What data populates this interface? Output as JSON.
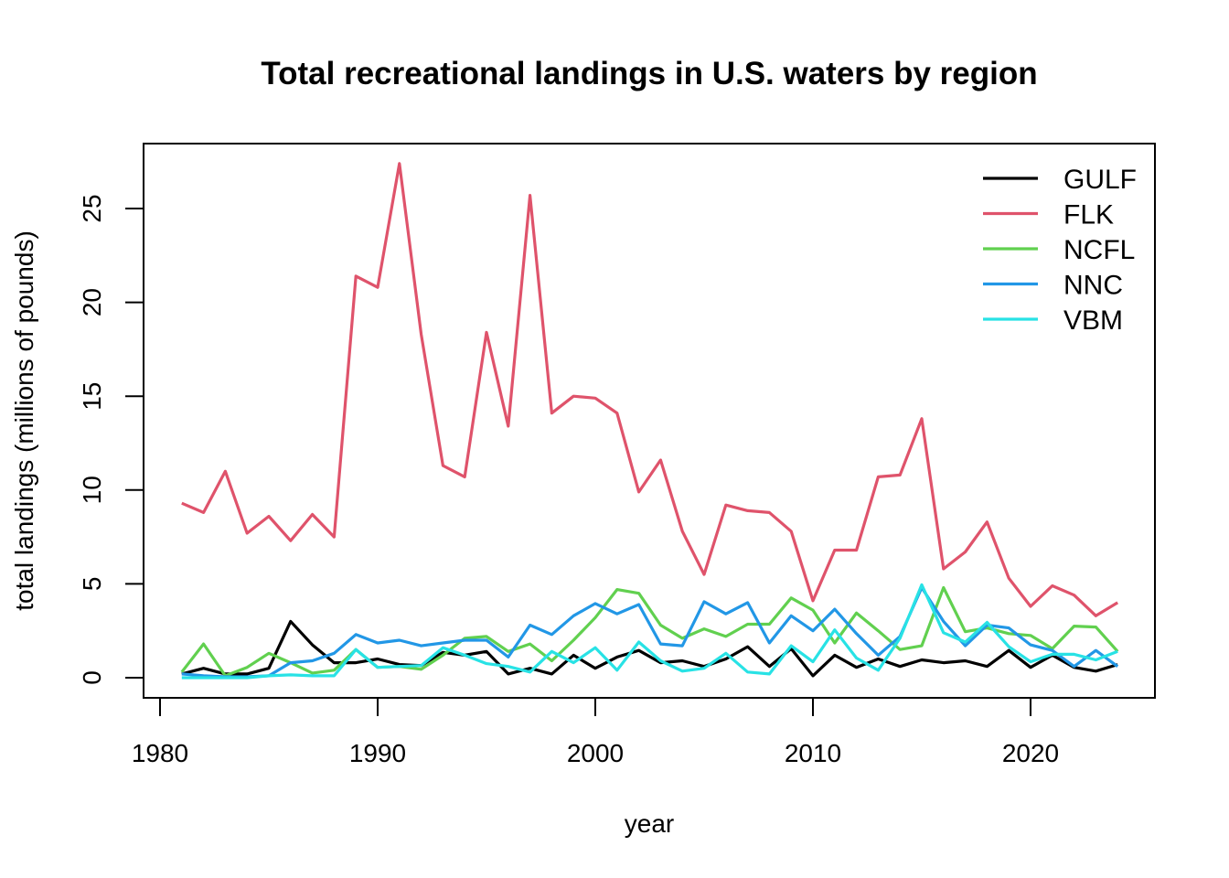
{
  "chart_data": {
    "type": "line",
    "title": "Total recreational landings in U.S. waters by region",
    "xlabel": "year",
    "ylabel": "total landings (millions of pounds)",
    "xlim": [
      1980,
      2025
    ],
    "ylim": [
      0,
      27.5
    ],
    "xticks": [
      1980,
      1990,
      2000,
      2010,
      2020
    ],
    "yticks": [
      0,
      5,
      10,
      15,
      20,
      25
    ],
    "legend_position": "top-right",
    "grid": false,
    "x": [
      1981,
      1982,
      1983,
      1984,
      1985,
      1986,
      1987,
      1988,
      1989,
      1990,
      1991,
      1992,
      1993,
      1994,
      1995,
      1996,
      1997,
      1998,
      1999,
      2000,
      2001,
      2002,
      2003,
      2004,
      2005,
      2006,
      2007,
      2008,
      2009,
      2010,
      2011,
      2012,
      2013,
      2014,
      2015,
      2016,
      2017,
      2018,
      2019,
      2020,
      2021,
      2022,
      2023,
      2024
    ],
    "series": [
      {
        "name": "GULF",
        "color": "#000000",
        "values": [
          0.2,
          0.5,
          0.2,
          0.2,
          0.5,
          3.0,
          1.75,
          0.8,
          0.8,
          1.0,
          0.7,
          0.65,
          1.35,
          1.2,
          1.4,
          0.2,
          0.5,
          0.2,
          1.2,
          0.5,
          1.1,
          1.45,
          0.8,
          0.9,
          0.6,
          1.0,
          1.65,
          0.6,
          1.55,
          0.1,
          1.2,
          0.55,
          1.0,
          0.6,
          0.95,
          0.8,
          0.9,
          0.6,
          1.45,
          0.55,
          1.2,
          0.55,
          0.35,
          0.7
        ]
      },
      {
        "name": "FLK",
        "color": "#DF536B",
        "values": [
          9.3,
          8.8,
          11.0,
          7.7,
          8.6,
          7.3,
          8.7,
          7.5,
          21.4,
          20.8,
          27.4,
          18.3,
          11.3,
          10.7,
          18.4,
          13.4,
          25.7,
          14.1,
          15.0,
          14.9,
          14.1,
          9.9,
          11.6,
          7.8,
          5.5,
          9.2,
          8.9,
          8.8,
          7.8,
          4.1,
          6.8,
          6.8,
          10.7,
          10.8,
          13.8,
          5.8,
          6.7,
          8.3,
          5.3,
          3.8,
          4.9,
          4.4,
          3.3,
          4.0
        ]
      },
      {
        "name": "NCFL",
        "color": "#61D04F",
        "values": [
          0.3,
          1.8,
          0.1,
          0.55,
          1.3,
          0.8,
          0.25,
          0.4,
          1.5,
          0.55,
          0.6,
          0.45,
          1.2,
          2.1,
          2.2,
          1.4,
          1.8,
          0.9,
          2.0,
          3.2,
          4.7,
          4.5,
          2.8,
          2.1,
          2.6,
          2.2,
          2.85,
          2.85,
          4.25,
          3.6,
          1.85,
          3.45,
          2.5,
          1.5,
          1.7,
          4.8,
          2.45,
          2.65,
          2.35,
          2.25,
          1.55,
          2.75,
          2.7,
          1.4
        ]
      },
      {
        "name": "NNC",
        "color": "#2297E6",
        "values": [
          0.2,
          0.1,
          0.05,
          0.05,
          0.1,
          0.8,
          0.9,
          1.3,
          2.3,
          1.85,
          2.0,
          1.7,
          1.85,
          2.0,
          2.0,
          1.1,
          2.8,
          2.3,
          3.3,
          3.95,
          3.4,
          3.9,
          1.8,
          1.7,
          4.05,
          3.4,
          4.0,
          1.85,
          3.3,
          2.5,
          3.65,
          2.35,
          1.2,
          2.2,
          4.8,
          3.0,
          1.7,
          2.8,
          2.65,
          1.75,
          1.45,
          0.6,
          1.45,
          0.6
        ]
      },
      {
        "name": "VBM",
        "color": "#28E2E5",
        "values": [
          0.0,
          0.0,
          0.0,
          0.0,
          0.1,
          0.15,
          0.1,
          0.1,
          1.5,
          0.55,
          0.6,
          0.65,
          1.6,
          1.2,
          0.75,
          0.6,
          0.3,
          1.4,
          0.8,
          1.6,
          0.4,
          1.9,
          0.9,
          0.35,
          0.5,
          1.3,
          0.3,
          0.2,
          1.7,
          0.85,
          2.55,
          1.05,
          0.4,
          2.1,
          4.95,
          2.4,
          1.9,
          2.95,
          1.65,
          0.85,
          1.25,
          1.25,
          0.95,
          1.4
        ]
      }
    ]
  }
}
